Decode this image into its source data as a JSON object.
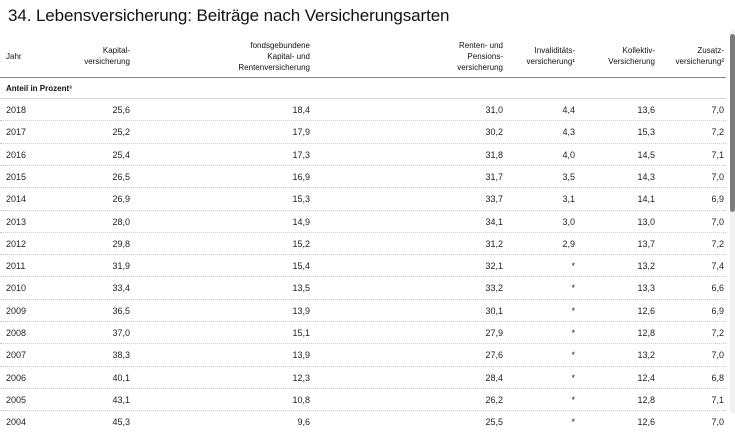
{
  "title": "34. Lebensversicherung: Beiträge nach Versicherungsarten",
  "headers": {
    "jahr": "Jahr",
    "kapital": [
      "Kapital-",
      "versicherung"
    ],
    "fonds": [
      "fondsgebundene",
      "Kapital- und",
      "Rentenversicherung"
    ],
    "renten": [
      "Renten- und",
      "Pensions-",
      "versicherung"
    ],
    "invaliditaet": [
      "Invaliditäts-",
      "versicherung¹"
    ],
    "kollektiv": [
      "Kollektiv-",
      "Versicherung"
    ],
    "zusatz": [
      "Zusatz-",
      "versicherung²"
    ]
  },
  "section_label": "Anteil in Prozent³",
  "rows": [
    {
      "year": "2018",
      "kapital": "25,6",
      "fonds": "18,4",
      "renten": "31,0",
      "inval": "4,4",
      "kollektiv": "13,6",
      "zusatz": "7,0"
    },
    {
      "year": "2017",
      "kapital": "25,2",
      "fonds": "17,9",
      "renten": "30,2",
      "inval": "4,3",
      "kollektiv": "15,3",
      "zusatz": "7,2"
    },
    {
      "year": "2016",
      "kapital": "25,4",
      "fonds": "17,3",
      "renten": "31,8",
      "inval": "4,0",
      "kollektiv": "14,5",
      "zusatz": "7,1"
    },
    {
      "year": "2015",
      "kapital": "26,5",
      "fonds": "16,9",
      "renten": "31,7",
      "inval": "3,5",
      "kollektiv": "14,3",
      "zusatz": "7,0"
    },
    {
      "year": "2014",
      "kapital": "26,9",
      "fonds": "15,3",
      "renten": "33,7",
      "inval": "3,1",
      "kollektiv": "14,1",
      "zusatz": "6,9"
    },
    {
      "year": "2013",
      "kapital": "28,0",
      "fonds": "14,9",
      "renten": "34,1",
      "inval": "3,0",
      "kollektiv": "13,0",
      "zusatz": "7,0"
    },
    {
      "year": "2012",
      "kapital": "29,8",
      "fonds": "15,2",
      "renten": "31,2",
      "inval": "2,9",
      "kollektiv": "13,7",
      "zusatz": "7,2"
    },
    {
      "year": "2011",
      "kapital": "31,9",
      "fonds": "15,4",
      "renten": "32,1",
      "inval": "*",
      "kollektiv": "13,2",
      "zusatz": "7,4"
    },
    {
      "year": "2010",
      "kapital": "33,4",
      "fonds": "13,5",
      "renten": "33,2",
      "inval": "*",
      "kollektiv": "13,3",
      "zusatz": "6,6"
    },
    {
      "year": "2009",
      "kapital": "36,5",
      "fonds": "13,9",
      "renten": "30,1",
      "inval": "*",
      "kollektiv": "12,6",
      "zusatz": "6,9"
    },
    {
      "year": "2008",
      "kapital": "37,0",
      "fonds": "15,1",
      "renten": "27,9",
      "inval": "*",
      "kollektiv": "12,8",
      "zusatz": "7,2"
    },
    {
      "year": "2007",
      "kapital": "38,3",
      "fonds": "13,9",
      "renten": "27,6",
      "inval": "*",
      "kollektiv": "13,2",
      "zusatz": "7,0"
    },
    {
      "year": "2006",
      "kapital": "40,1",
      "fonds": "12,3",
      "renten": "28,4",
      "inval": "*",
      "kollektiv": "12,4",
      "zusatz": "6,8"
    },
    {
      "year": "2005",
      "kapital": "43,1",
      "fonds": "10,8",
      "renten": "26,2",
      "inval": "*",
      "kollektiv": "12,8",
      "zusatz": "7,1"
    },
    {
      "year": "2004",
      "kapital": "45,3",
      "fonds": "9,6",
      "renten": "25,5",
      "inval": "*",
      "kollektiv": "12,6",
      "zusatz": "7,0"
    }
  ]
}
